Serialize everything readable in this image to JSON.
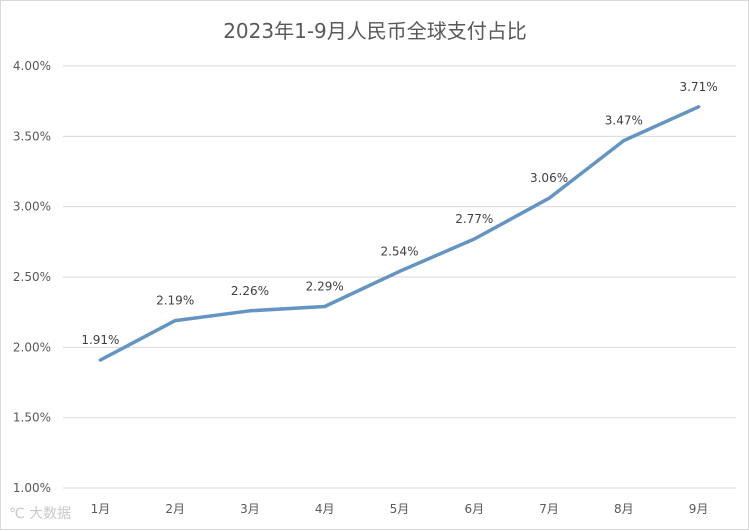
{
  "chart_data": {
    "type": "line",
    "title": "2023年1-9月人民币全球支付占比",
    "categories": [
      "1月",
      "2月",
      "3月",
      "4月",
      "5月",
      "6月",
      "7月",
      "8月",
      "9月"
    ],
    "series": [
      {
        "values": [
          1.91,
          2.19,
          2.26,
          2.29,
          2.54,
          2.77,
          3.06,
          3.47,
          3.71
        ],
        "labels": [
          "1.91%",
          "2.19%",
          "2.26%",
          "2.29%",
          "2.54%",
          "2.77%",
          "3.06%",
          "3.47%",
          "3.71%"
        ]
      }
    ],
    "ylim": [
      1.0,
      4.0
    ],
    "yticks": [
      "1.00%",
      "1.50%",
      "2.00%",
      "2.50%",
      "3.00%",
      "3.50%",
      "4.00%"
    ],
    "grid": true,
    "legend": "none",
    "line_color": "#6495c2"
  },
  "watermark": "大数据 "
}
